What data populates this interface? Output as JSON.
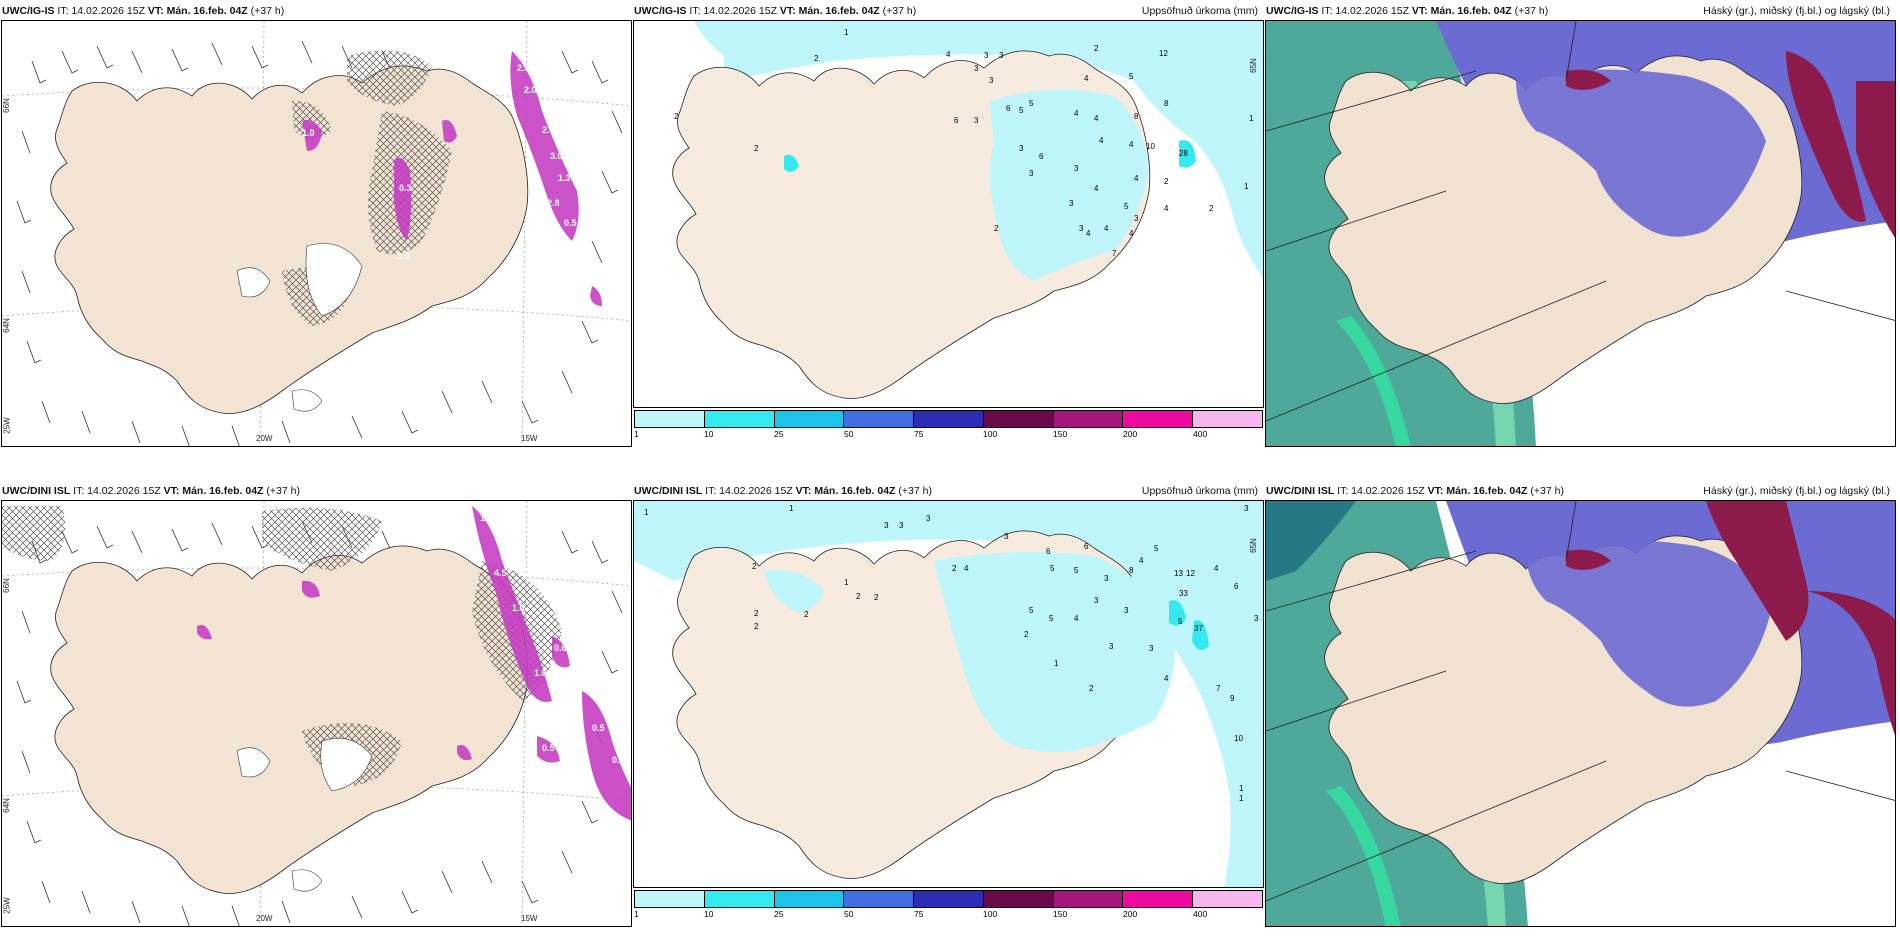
{
  "colors": {
    "land": "#f3e4d3",
    "sea": "#ffffff",
    "precip_light": "#bff6fb",
    "precip_cyan": "#66eef0",
    "snow_magenta": "#c73fc3",
    "cloud_high": "#6c6bd3",
    "cloud_mid": "#8c1a4a",
    "cloud_low": "#2f9a88",
    "cloud_low_light": "#7fe0b4"
  },
  "colorbar": {
    "colors": [
      "#bff6fb",
      "#35e9f0",
      "#1cc3ea",
      "#3f6fe0",
      "#2c2cb7",
      "#6a0a4a",
      "#a3167d",
      "#ee0aa0",
      "#f6b6ee"
    ],
    "ticks": [
      "1",
      "10",
      "25",
      "50",
      "75",
      "100",
      "150",
      "200",
      "400"
    ]
  },
  "rows": [
    {
      "panels": [
        {
          "model": "UWC/IG-IS",
          "it": "IT: 14.02.2026 15Z",
          "vt_label": "VT:",
          "vt": "Mán. 16.feb. 04Z",
          "lead": "(+37 h)",
          "title": "",
          "lons": [
            "20W",
            "15W"
          ],
          "lats": [
            "66N",
            "64N",
            "25W"
          ],
          "snow_labels": [
            "2.6",
            "3.0",
            "1.3",
            "2.8",
            "0.5",
            "1.0",
            "0.3",
            "2.6",
            "2.0",
            "3.9"
          ]
        },
        {
          "model": "UWC/IG-IS",
          "it": "IT: 14.02.2026 15Z",
          "vt_label": "VT:",
          "vt": "Mán. 16.feb. 04Z",
          "lead": "(+37 h)",
          "title": "Uppsöfnuð úrkoma (mm)",
          "lats": [
            "65N"
          ],
          "values": [
            "1",
            "2",
            "4",
            "3",
            "3",
            "2",
            "5",
            "4",
            "12",
            "3",
            "3",
            "5",
            "4",
            "6",
            "5",
            "8",
            "4",
            "8",
            "1",
            "6",
            "3",
            "4",
            "4",
            "10",
            "28",
            "2",
            "3",
            "6",
            "3",
            "3",
            "4",
            "2",
            "4",
            "2",
            "1",
            "4",
            "3",
            "3",
            "4",
            "3",
            "7",
            "2",
            "4",
            "4",
            "5",
            "2"
          ]
        },
        {
          "model": "UWC/IG-IS",
          "it": "IT: 14.02.2026 15Z",
          "vt_label": "VT:",
          "vt": "Mán. 16.feb. 04Z",
          "lead": "(+37 h)",
          "title": "Háský (gr.), miðský (fj.bl.) og lágský (bl.)"
        }
      ]
    },
    {
      "panels": [
        {
          "model": "UWC/DINI ISL",
          "it": "IT: 14.02.2026 15Z",
          "vt_label": "VT:",
          "vt": "Mán. 16.feb. 04Z",
          "lead": "(+37 h)",
          "title": "",
          "lons": [
            "20W",
            "15W"
          ],
          "lats": [
            "66N",
            "64N",
            "25W"
          ],
          "snow_labels": [
            "1.5",
            "4.5",
            "1.0",
            "0.6",
            "1.6",
            "0.5",
            "0.5",
            "0.6"
          ]
        },
        {
          "model": "UWC/DINI ISL",
          "it": "IT: 14.02.2026 15Z",
          "vt_label": "VT:",
          "vt": "Mán. 16.feb. 04Z",
          "lead": "(+37 h)",
          "title": "Uppsöfnuð úrkoma (mm)",
          "lats": [
            "65N"
          ],
          "values": [
            "1",
            "1",
            "3",
            "3",
            "3",
            "3",
            "2",
            "2",
            "4",
            "3",
            "2",
            "6",
            "5",
            "13",
            "12",
            "4",
            "5",
            "5",
            "3",
            "8",
            "4",
            "6",
            "33",
            "37",
            "5",
            "3",
            "2",
            "1",
            "2",
            "2",
            "2",
            "5",
            "4",
            "3",
            "3",
            "5",
            "6",
            "2",
            "3",
            "7",
            "9",
            "10",
            "4",
            "3",
            "1",
            "1",
            "1",
            "2"
          ]
        },
        {
          "model": "UWC/DINI ISL",
          "it": "IT: 14.02.2026 15Z",
          "vt_label": "VT:",
          "vt": "Mán. 16.feb. 04Z",
          "lead": "(+37 h)",
          "title": "Háský (gr.), miðský (fj.bl.) og lágský (bl.)"
        }
      ]
    }
  ]
}
